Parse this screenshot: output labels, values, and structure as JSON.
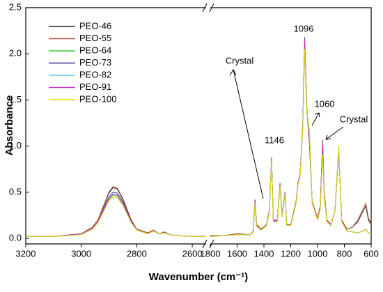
{
  "chart_data": {
    "type": "line",
    "x_label": "Wavenumber (cm⁻¹)",
    "y_label": "Absorbance",
    "annotations": [
      "Crystal",
      "1146",
      "1096",
      "1060",
      "Crystal"
    ],
    "legend": "upper left",
    "xlim": [
      3200,
      600
    ],
    "xbreak": [
      2550,
      1800
    ],
    "xticks": [
      3200,
      3000,
      2800,
      2600,
      1800,
      1600,
      1400,
      1200,
      1000,
      800,
      600
    ],
    "ylim": [
      -0.06,
      2.5
    ],
    "yticks": [
      {
        "value": 0,
        "label": "0.0"
      },
      0.5,
      {
        "value": 1,
        "label": "1.0"
      },
      1.5,
      {
        "value": 2,
        "label": "2.0"
      },
      2.5
    ],
    "x": [
      3200,
      3100,
      3000,
      2960,
      2940,
      2920,
      2900,
      2885,
      2870,
      2850,
      2820,
      2800,
      2780,
      2760,
      2740,
      2720,
      2700,
      2680,
      2650,
      2600,
      2550,
      1800,
      1700,
      1600,
      1500,
      1480,
      1466,
      1455,
      1420,
      1380,
      1360,
      1343,
      1330,
      1300,
      1280,
      1265,
      1242,
      1230,
      1200,
      1160,
      1146,
      1130,
      1110,
      1096,
      1080,
      1060,
      1040,
      1000,
      980,
      962,
      950,
      930,
      900,
      870,
      842,
      820,
      780,
      740,
      700,
      660,
      640,
      620,
      600
    ],
    "series": [
      {
        "name": "PEO-46",
        "color": "#222222",
        "values": [
          0.02,
          0.02,
          0.05,
          0.12,
          0.2,
          0.35,
          0.5,
          0.56,
          0.54,
          0.43,
          0.2,
          0.1,
          0.08,
          0.06,
          0.09,
          0.05,
          0.07,
          0.04,
          0.03,
          0.02,
          0.02,
          0.03,
          0.03,
          0.05,
          0.04,
          0.08,
          0.42,
          0.15,
          0.1,
          0.15,
          0.3,
          0.86,
          0.2,
          0.2,
          0.58,
          0.25,
          0.5,
          0.15,
          0.15,
          0.4,
          0.6,
          0.7,
          1.2,
          2.1,
          1.4,
          1.0,
          0.4,
          0.22,
          0.35,
          1.05,
          0.5,
          0.2,
          0.15,
          0.3,
          0.95,
          0.2,
          0.1,
          0.12,
          0.18,
          0.3,
          0.35,
          0.2,
          0.15
        ]
      },
      {
        "name": "PEO-55",
        "color": "#b0503a",
        "values": [
          0.02,
          0.02,
          0.05,
          0.12,
          0.2,
          0.34,
          0.49,
          0.55,
          0.53,
          0.42,
          0.2,
          0.1,
          0.08,
          0.06,
          0.09,
          0.05,
          0.07,
          0.04,
          0.03,
          0.02,
          0.02,
          0.03,
          0.03,
          0.05,
          0.04,
          0.08,
          0.41,
          0.15,
          0.1,
          0.15,
          0.3,
          0.87,
          0.2,
          0.2,
          0.59,
          0.25,
          0.5,
          0.15,
          0.15,
          0.4,
          0.6,
          0.7,
          1.22,
          2.15,
          1.42,
          1.02,
          0.4,
          0.22,
          0.35,
          1.07,
          0.5,
          0.2,
          0.15,
          0.3,
          0.96,
          0.2,
          0.1,
          0.12,
          0.2,
          0.32,
          0.38,
          0.22,
          0.16
        ]
      },
      {
        "name": "PEO-64",
        "color": "#33cc33",
        "values": [
          0.02,
          0.02,
          0.04,
          0.1,
          0.17,
          0.3,
          0.42,
          0.47,
          0.46,
          0.37,
          0.18,
          0.09,
          0.07,
          0.05,
          0.08,
          0.05,
          0.06,
          0.04,
          0.03,
          0.02,
          0.02,
          0.02,
          0.03,
          0.04,
          0.04,
          0.07,
          0.38,
          0.13,
          0.09,
          0.14,
          0.28,
          0.85,
          0.18,
          0.18,
          0.57,
          0.23,
          0.48,
          0.14,
          0.14,
          0.38,
          0.58,
          0.68,
          1.18,
          2.05,
          1.38,
          1.15,
          0.38,
          0.2,
          0.32,
          0.9,
          0.45,
          0.18,
          0.14,
          0.3,
          1.0,
          0.18,
          0.08,
          0.07,
          0.06,
          0.08,
          0.1,
          0.06,
          0.05
        ]
      },
      {
        "name": "PEO-73",
        "color": "#333399",
        "values": [
          0.02,
          0.02,
          0.05,
          0.11,
          0.18,
          0.32,
          0.45,
          0.5,
          0.49,
          0.4,
          0.19,
          0.09,
          0.07,
          0.05,
          0.08,
          0.05,
          0.06,
          0.04,
          0.03,
          0.02,
          0.02,
          0.02,
          0.03,
          0.04,
          0.04,
          0.07,
          0.4,
          0.14,
          0.09,
          0.14,
          0.29,
          0.88,
          0.19,
          0.19,
          0.6,
          0.24,
          0.49,
          0.14,
          0.14,
          0.39,
          0.6,
          0.7,
          1.22,
          2.18,
          1.42,
          1.05,
          0.39,
          0.21,
          0.33,
          1.0,
          0.47,
          0.19,
          0.14,
          0.3,
          0.97,
          0.19,
          0.08,
          0.07,
          0.06,
          0.08,
          0.1,
          0.06,
          0.05
        ]
      },
      {
        "name": "PEO-82",
        "color": "#66ccee",
        "values": [
          0.02,
          0.02,
          0.04,
          0.1,
          0.17,
          0.29,
          0.41,
          0.45,
          0.44,
          0.36,
          0.17,
          0.09,
          0.07,
          0.05,
          0.08,
          0.05,
          0.06,
          0.04,
          0.03,
          0.02,
          0.02,
          0.02,
          0.03,
          0.04,
          0.04,
          0.07,
          0.39,
          0.13,
          0.09,
          0.14,
          0.28,
          0.86,
          0.18,
          0.18,
          0.58,
          0.23,
          0.48,
          0.14,
          0.14,
          0.38,
          0.59,
          0.69,
          1.2,
          2.12,
          1.4,
          1.08,
          0.38,
          0.2,
          0.32,
          0.98,
          0.46,
          0.18,
          0.14,
          0.3,
          0.98,
          0.18,
          0.08,
          0.07,
          0.06,
          0.08,
          0.1,
          0.06,
          0.05
        ]
      },
      {
        "name": "PEO-91",
        "color": "#cc33cc",
        "values": [
          0.02,
          0.02,
          0.05,
          0.11,
          0.18,
          0.31,
          0.43,
          0.48,
          0.47,
          0.38,
          0.18,
          0.09,
          0.07,
          0.05,
          0.08,
          0.05,
          0.06,
          0.04,
          0.03,
          0.02,
          0.02,
          0.02,
          0.03,
          0.04,
          0.04,
          0.07,
          0.4,
          0.14,
          0.09,
          0.14,
          0.29,
          0.87,
          0.19,
          0.19,
          0.59,
          0.24,
          0.49,
          0.14,
          0.14,
          0.39,
          0.6,
          0.7,
          1.21,
          2.16,
          1.41,
          1.04,
          0.39,
          0.21,
          0.33,
          1.02,
          0.47,
          0.19,
          0.14,
          0.3,
          0.97,
          0.19,
          0.08,
          0.07,
          0.06,
          0.08,
          0.1,
          0.06,
          0.05
        ]
      },
      {
        "name": "PEO-100",
        "color": "#dddd00",
        "values": [
          0.02,
          0.02,
          0.04,
          0.1,
          0.17,
          0.29,
          0.41,
          0.45,
          0.44,
          0.36,
          0.17,
          0.09,
          0.07,
          0.05,
          0.08,
          0.05,
          0.06,
          0.04,
          0.03,
          0.02,
          0.02,
          0.02,
          0.03,
          0.04,
          0.04,
          0.07,
          0.38,
          0.13,
          0.09,
          0.14,
          0.28,
          0.85,
          0.18,
          0.18,
          0.57,
          0.23,
          0.48,
          0.14,
          0.14,
          0.38,
          0.58,
          0.68,
          1.18,
          2.05,
          1.38,
          1.12,
          0.38,
          0.2,
          0.32,
          0.92,
          0.45,
          0.18,
          0.14,
          0.3,
          1.0,
          0.18,
          0.08,
          0.07,
          0.06,
          0.08,
          0.1,
          0.06,
          0.05
        ]
      }
    ]
  }
}
